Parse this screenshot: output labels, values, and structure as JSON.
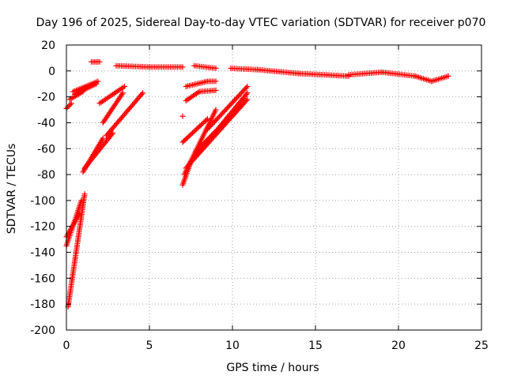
{
  "chart_data": {
    "type": "scatter",
    "title": "Day 196 of 2025, Sidereal Day-to-day VTEC variation (SDTVAR) for receiver p070",
    "xlabel": "GPS time / hours",
    "ylabel": "SDTVAR / TECUs",
    "xlim": [
      0,
      25
    ],
    "ylim": [
      -200,
      20
    ],
    "xticks": [
      0,
      5,
      10,
      15,
      20,
      25
    ],
    "xtick_labels": [
      "0",
      "5",
      "10",
      "15",
      "20",
      "25"
    ],
    "yticks": [
      20,
      0,
      -20,
      -40,
      -60,
      -80,
      -100,
      -120,
      -140,
      -160,
      -180,
      -200
    ],
    "ytick_labels": [
      "20",
      "0",
      "-20",
      "-40",
      "-60",
      "-80",
      "-100",
      "-120",
      "-140",
      "-160",
      "-180",
      "-200"
    ],
    "grid": true,
    "marker": "+",
    "series": [
      {
        "name": "SDTVAR",
        "color": "#ff0000",
        "segments": [
          {
            "start": [
              1.5,
              7
            ],
            "end": [
              2.0,
              7
            ]
          },
          {
            "start": [
              3.0,
              4
            ],
            "end": [
              5.0,
              3
            ]
          },
          {
            "start": [
              5.0,
              3
            ],
            "end": [
              7.0,
              3
            ]
          },
          {
            "start": [
              7.7,
              4
            ],
            "end": [
              9.0,
              2
            ]
          },
          {
            "start": [
              9.9,
              2
            ],
            "end": [
              11.5,
              1
            ]
          },
          {
            "start": [
              11.5,
              1
            ],
            "end": [
              14.0,
              -2
            ]
          },
          {
            "start": [
              14.0,
              -2
            ],
            "end": [
              17.0,
              -4
            ]
          },
          {
            "start": [
              17.0,
              -3
            ],
            "end": [
              19.0,
              -1
            ]
          },
          {
            "start": [
              19.0,
              -1
            ],
            "end": [
              21.0,
              -4
            ]
          },
          {
            "start": [
              21.0,
              -4
            ],
            "end": [
              22.0,
              -8
            ]
          },
          {
            "start": [
              22.0,
              -8
            ],
            "end": [
              23.0,
              -4
            ]
          },
          {
            "start": [
              0.0,
              -29
            ],
            "end": [
              0.3,
              -25
            ]
          },
          {
            "start": [
              0.2,
              -22
            ],
            "end": [
              1.0,
              -16
            ]
          },
          {
            "start": [
              0.4,
              -16
            ],
            "end": [
              1.9,
              -8
            ]
          },
          {
            "start": [
              0.5,
              -18
            ],
            "end": [
              1.8,
              -10
            ]
          },
          {
            "start": [
              1.0,
              -78
            ],
            "end": [
              2.2,
              -52
            ]
          },
          {
            "start": [
              1.1,
              -75
            ],
            "end": [
              2.8,
              -48
            ]
          },
          {
            "start": [
              2.0,
              -25
            ],
            "end": [
              3.5,
              -12
            ]
          },
          {
            "start": [
              2.2,
              -40
            ],
            "end": [
              3.4,
              -17
            ]
          },
          {
            "start": [
              2.4,
              -50
            ],
            "end": [
              4.6,
              -17
            ]
          },
          {
            "start": [
              0.0,
              -128
            ],
            "end": [
              0.8,
              -110
            ]
          },
          {
            "start": [
              0.1,
              -182
            ],
            "end": [
              1.1,
              -95
            ]
          },
          {
            "start": [
              0.0,
              -135
            ],
            "end": [
              0.9,
              -100
            ]
          },
          {
            "start": [
              7.0,
              -88
            ],
            "end": [
              7.5,
              -70
            ]
          },
          {
            "start": [
              7.0,
              -55
            ],
            "end": [
              8.5,
              -37
            ]
          },
          {
            "start": [
              7.1,
              -80
            ],
            "end": [
              9.0,
              -30
            ]
          },
          {
            "start": [
              7.2,
              -75
            ],
            "end": [
              10.9,
              -22
            ]
          },
          {
            "start": [
              7.5,
              -70
            ],
            "end": [
              10.9,
              -17
            ]
          },
          {
            "start": [
              7.8,
              -62
            ],
            "end": [
              10.5,
              -27
            ]
          },
          {
            "start": [
              8.5,
              -45
            ],
            "end": [
              10.9,
              -12
            ]
          },
          {
            "start": [
              7.2,
              -12
            ],
            "end": [
              8.5,
              -8
            ]
          },
          {
            "start": [
              8.5,
              -8
            ],
            "end": [
              9.0,
              -8
            ]
          },
          {
            "start": [
              7.2,
              -23
            ],
            "end": [
              8.0,
              -16
            ]
          },
          {
            "start": [
              8.0,
              -16
            ],
            "end": [
              9.0,
              -15
            ]
          }
        ],
        "points": [
          {
            "x": 7.0,
            "y": -35
          }
        ]
      }
    ]
  }
}
